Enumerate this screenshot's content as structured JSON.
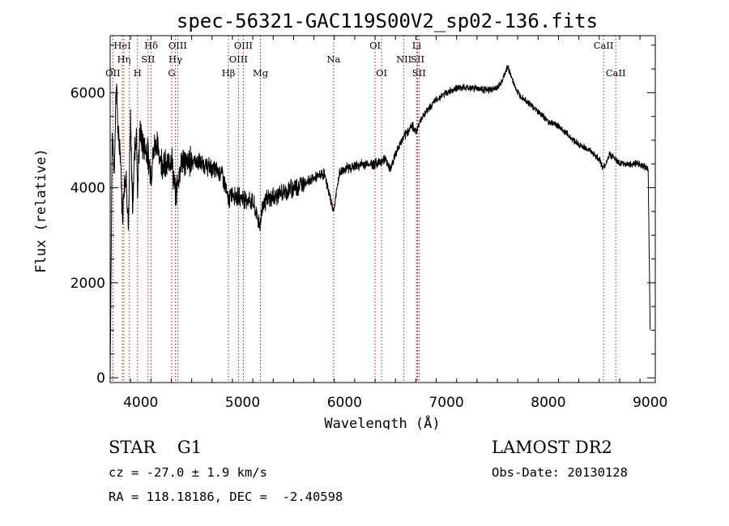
{
  "chart_data": {
    "type": "line",
    "title": "spec-56321-GAC119S00V2_sp02-136.fits",
    "xlabel": "Wavelength (Å)",
    "ylabel": "Flux (relative)",
    "xlim": [
      3700,
      9050
    ],
    "ylim": [
      -100,
      7200
    ],
    "xticks": [
      4000,
      5000,
      6000,
      7000,
      8000,
      9000
    ],
    "yticks": [
      0,
      2000,
      4000,
      6000
    ],
    "grid": false,
    "series": [
      {
        "x": [
          3700,
          3720,
          3740,
          3760,
          3780,
          3800,
          3820,
          3840,
          3860,
          3880,
          3900,
          3920,
          3940,
          3960,
          3968,
          3990,
          4020,
          4060,
          4102,
          4140,
          4200,
          4260,
          4300,
          4340,
          4400,
          4450,
          4500,
          4600,
          4700,
          4800,
          4861,
          4900,
          4950,
          5000,
          5100,
          5170,
          5200,
          5300,
          5400,
          5500,
          5600,
          5700,
          5800,
          5893,
          5950,
          6000,
          6100,
          6200,
          6300,
          6400,
          6450,
          6500,
          6563,
          6600,
          6650,
          6708,
          6750,
          6800,
          6900,
          7000,
          7100,
          7200,
          7300,
          7400,
          7500,
          7550,
          7600,
          7620,
          7650,
          7700,
          7800,
          7900,
          8000,
          8100,
          8200,
          8300,
          8400,
          8500,
          8542,
          8600,
          8662,
          8700,
          8800,
          8900,
          8980,
          9000
        ],
        "y": [
          0,
          5200,
          4300,
          6300,
          5000,
          4800,
          3400,
          4200,
          4200,
          3100,
          5400,
          3600,
          4800,
          5200,
          3800,
          5200,
          4900,
          4800,
          4300,
          5000,
          4600,
          4400,
          4700,
          3800,
          4600,
          4500,
          4600,
          4500,
          4400,
          4300,
          3700,
          3900,
          3800,
          3800,
          3700,
          3200,
          3700,
          3800,
          3900,
          4000,
          4100,
          4200,
          4300,
          3500,
          4300,
          4400,
          4450,
          4500,
          4500,
          4600,
          4400,
          4700,
          5000,
          5100,
          5300,
          5200,
          5450,
          5600,
          5850,
          6000,
          6100,
          6100,
          6100,
          6050,
          6100,
          6250,
          6550,
          6450,
          6250,
          6000,
          5800,
          5600,
          5400,
          5300,
          5100,
          4900,
          4800,
          4600,
          4400,
          4700,
          4600,
          4500,
          4500,
          4500,
          4400,
          1000
        ]
      }
    ],
    "lines": [
      {
        "w": 3727,
        "label": "OII",
        "row": 1
      },
      {
        "w": 3820,
        "label": "HeI",
        "row": 3
      },
      {
        "w": 3835,
        "label": "Hη",
        "row": 2
      },
      {
        "w": 3889,
        "label": "",
        "row": 0
      },
      {
        "w": 3968,
        "label": "H",
        "row": 1
      },
      {
        "w": 4072,
        "label": "SII",
        "row": 2
      },
      {
        "w": 4102,
        "label": "Hδ",
        "row": 3
      },
      {
        "w": 4304,
        "label": "G",
        "row": 1
      },
      {
        "w": 4340,
        "label": "Hγ",
        "row": 2
      },
      {
        "w": 4363,
        "label": "OIII",
        "row": 3
      },
      {
        "w": 4861,
        "label": "Hβ",
        "row": 1
      },
      {
        "w": 4959,
        "label": "OIII",
        "row": 2
      },
      {
        "w": 5007,
        "label": "OIII",
        "row": 3
      },
      {
        "w": 5175,
        "label": "Mg",
        "row": 1
      },
      {
        "w": 5893,
        "label": "Na",
        "row": 2
      },
      {
        "w": 6300,
        "label": "OI",
        "row": 3
      },
      {
        "w": 6364,
        "label": "OI",
        "row": 1
      },
      {
        "w": 6583,
        "label": "NII",
        "row": 2
      },
      {
        "w": 6708,
        "label": "Li",
        "row": 3
      },
      {
        "w": 6717,
        "label": "SII",
        "row": 2
      },
      {
        "w": 6731,
        "label": "SII",
        "row": 1
      },
      {
        "w": 8542,
        "label": "CaII",
        "row": 3
      },
      {
        "w": 8662,
        "label": "CaII",
        "row": 1
      }
    ]
  },
  "info": {
    "class": "STAR    G1",
    "survey": "LAMOST DR2",
    "cz": "cz = -27.0 ± 1.9 km/s",
    "obsdate": "Obs-Date: 20130128",
    "radec": "RA = 118.18186, DEC =  -2.40598"
  },
  "colors": {
    "spectrum": "#000000",
    "line_marker": "#b22222"
  }
}
